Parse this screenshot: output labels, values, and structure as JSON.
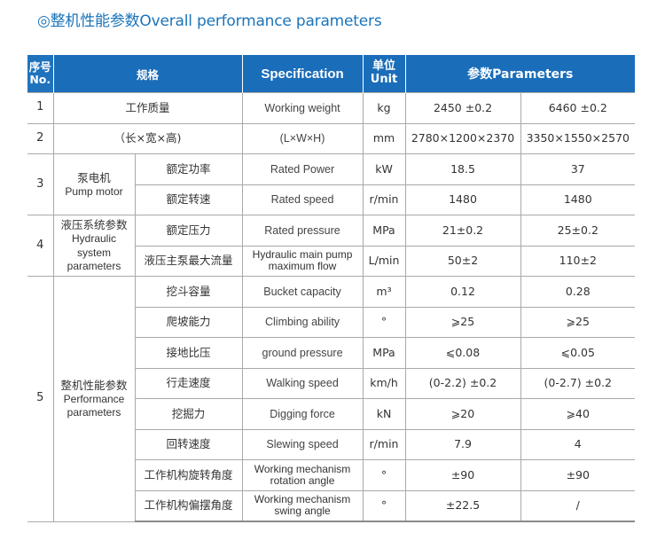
{
  "title": "◎整机性能参数Overall performance parameters",
  "header": {
    "no_cn": "序号",
    "no_en": "No.",
    "spec_cn": "规格",
    "spec_en": "Specification",
    "unit_cn": "单位",
    "unit_en": "Unit",
    "params": "参数Parameters"
  },
  "groups": {
    "g3_cn": "泵电机",
    "g3_en": "Pump motor",
    "g4_cn": "液压系统参数",
    "g4_en1": "Hydraulic system",
    "g4_en2": "parameters",
    "g5_cn": "整机性能参数",
    "g5_en1": "Performance",
    "g5_en2": "parameters"
  },
  "rows": [
    {
      "no": "1",
      "cn": "工作质量",
      "en": "Working weight",
      "unit": "kg",
      "v1": "2450 ±0.2",
      "v2": "6460 ±0.2"
    },
    {
      "no": "2",
      "cn": "（长×宽×高)",
      "en": "(L×W×H)",
      "unit": "mm",
      "v1": "2780×1200×2370",
      "v2": "3350×1550×2570"
    },
    {
      "no": "3",
      "cn": "额定功率",
      "en": "Rated Power",
      "unit": "kW",
      "v1": "18.5",
      "v2": "37"
    },
    {
      "no": "",
      "cn": "额定转速",
      "en": "Rated speed",
      "unit": "r/min",
      "v1": "1480",
      "v2": "1480"
    },
    {
      "no": "4",
      "cn": "额定压力",
      "en": "Rated pressure",
      "unit": "MPa",
      "v1": "21±0.2",
      "v2": "25±0.2"
    },
    {
      "no": "",
      "cn": "液压主泵最大流量",
      "en1": "Hydraulic main pump",
      "en2": "maximum flow",
      "unit": "L/min",
      "v1": "50±2",
      "v2": "110±2"
    },
    {
      "no": "5",
      "cn": "挖斗容量",
      "en": "Bucket capacity",
      "unit": "m³",
      "v1": "0.12",
      "v2": "0.28"
    },
    {
      "no": "",
      "cn": "爬坡能力",
      "en": "Climbing ability",
      "unit": "°",
      "v1": "⩾25",
      "v2": "⩾25"
    },
    {
      "no": "",
      "cn": "接地比压",
      "en": "ground pressure",
      "unit": "MPa",
      "v1": "⩽0.08",
      "v2": "⩽0.05"
    },
    {
      "no": "",
      "cn": "行走速度",
      "en": "Walking speed",
      "unit": "km/h",
      "v1": "(0-2.2) ±0.2",
      "v2": "(0-2.7) ±0.2"
    },
    {
      "no": "",
      "cn": "挖掘力",
      "en": "Digging force",
      "unit": "kN",
      "v1": "⩾20",
      "v2": "⩾40"
    },
    {
      "no": "",
      "cn": "回转速度",
      "en": "Slewing  speed",
      "unit": "r/min",
      "v1": "7.9",
      "v2": "4"
    },
    {
      "no": "",
      "cn": "工作机构旋转角度",
      "en1": "Working mechanism",
      "en2": "rotation angle",
      "unit": "°",
      "v1": "±90",
      "v2": "±90"
    },
    {
      "no": "",
      "cn": "工作机构偏摆角度",
      "en1": "Working mechanism",
      "en2": "swing angle",
      "unit": "°",
      "v1": "±22.5",
      "v2": "/"
    }
  ]
}
